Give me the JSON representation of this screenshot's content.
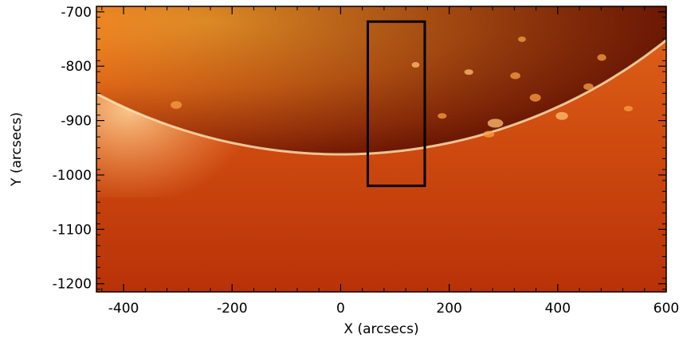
{
  "figure": {
    "x_axis": {
      "label": "X (arcsecs)",
      "range": [
        -450,
        600
      ],
      "ticks": [
        "-400",
        "-200",
        "0",
        "200",
        "400",
        "600"
      ],
      "tick_values": [
        -400,
        -200,
        0,
        200,
        400,
        600
      ]
    },
    "y_axis": {
      "label": "Y (arcsecs)",
      "range": [
        -1215,
        -690
      ],
      "ticks": [
        "-700",
        "-800",
        "-900",
        "-1000",
        "-1100",
        "-1200"
      ],
      "tick_values": [
        -700,
        -800,
        -900,
        -1000,
        -1100,
        -1200
      ]
    },
    "region_box": {
      "x": [
        50,
        155
      ],
      "y": [
        -1020,
        -718
      ]
    },
    "colors": {
      "disk_bright": "#f28a1e",
      "disk_dark": "#8a1400",
      "corona": "#c8400a",
      "limb": "#fff0c0",
      "box": "#000000"
    }
  }
}
